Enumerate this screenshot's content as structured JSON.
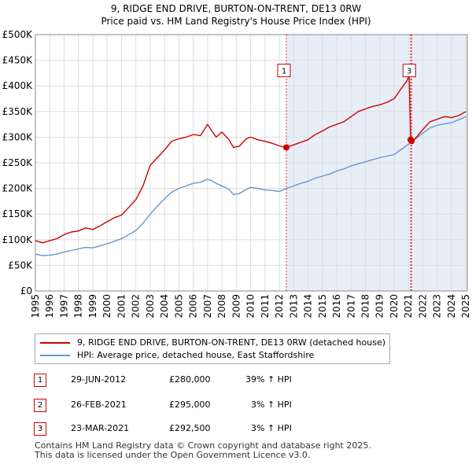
{
  "title": "9, RIDGE END DRIVE, BURTON-ON-TRENT, DE13 0RW",
  "subtitle": "Price paid vs. HM Land Registry's House Price Index (HPI)",
  "colors": {
    "property": "#cc0000",
    "hpi": "#6a96cc",
    "shade": "#e8eef8",
    "grid": "#dddddd",
    "marker": "#cc0000"
  },
  "chart_data": {
    "type": "line",
    "title": "Price paid vs. HM Land Registry's House Price Index (HPI)",
    "xlabel": "",
    "ylabel": "",
    "xlim": [
      1995,
      2025.1
    ],
    "ylim": [
      0,
      500000
    ],
    "yticks": [
      0,
      50000,
      100000,
      150000,
      200000,
      250000,
      300000,
      350000,
      400000,
      450000,
      500000
    ],
    "ytick_labels": [
      "£0",
      "£50K",
      "£100K",
      "£150K",
      "£200K",
      "£250K",
      "£300K",
      "£350K",
      "£400K",
      "£450K",
      "£500K"
    ],
    "xticks": [
      1995,
      1996,
      1997,
      1998,
      1999,
      2000,
      2001,
      2002,
      2003,
      2004,
      2005,
      2006,
      2007,
      2008,
      2009,
      2010,
      2011,
      2012,
      2013,
      2014,
      2015,
      2016,
      2017,
      2018,
      2019,
      2020,
      2021,
      2022,
      2023,
      2024,
      2025
    ],
    "grid": true,
    "shaded_region": {
      "x_start": 2012.5,
      "x_end": 2025.1
    },
    "series": [
      {
        "name": "9, RIDGE END DRIVE, BURTON-ON-TRENT, DE13 0RW (detached house)",
        "x": [
          1995,
          1995.5,
          1996,
          1996.5,
          1997,
          1997.5,
          1998,
          1998.5,
          1999,
          1999.5,
          2000,
          2000.5,
          2001,
          2001.5,
          2002,
          2002.5,
          2003,
          2003.5,
          2004,
          2004.5,
          2005,
          2005.5,
          2006,
          2006.5,
          2007,
          2007.3,
          2007.6,
          2008,
          2008.5,
          2008.8,
          2009.2,
          2009.7,
          2010,
          2010.5,
          2011,
          2011.5,
          2012,
          2012.5,
          2013,
          2013.5,
          2014,
          2014.5,
          2015,
          2015.5,
          2016,
          2016.5,
          2017,
          2017.5,
          2018,
          2018.5,
          2019,
          2019.5,
          2020,
          2020.5,
          2020.9,
          2021.05,
          2021.15,
          2021.22,
          2021.5,
          2022,
          2022.5,
          2023,
          2023.5,
          2024,
          2024.5,
          2025
        ],
        "values": [
          98000,
          94000,
          98000,
          102000,
          110000,
          115000,
          117000,
          123000,
          120000,
          127000,
          135000,
          143000,
          148000,
          163000,
          178000,
          205000,
          245000,
          260000,
          275000,
          292000,
          297000,
          300000,
          305000,
          303000,
          325000,
          312000,
          300000,
          310000,
          295000,
          280000,
          282000,
          297000,
          300000,
          295000,
          292000,
          288000,
          283000,
          280000,
          285000,
          290000,
          295000,
          305000,
          312000,
          320000,
          325000,
          330000,
          340000,
          350000,
          355000,
          360000,
          363000,
          368000,
          375000,
          395000,
          410000,
          420000,
          295000,
          292500,
          298000,
          315000,
          330000,
          335000,
          340000,
          338000,
          342000,
          350000
        ]
      },
      {
        "name": "HPI: Average price, detached house, East Staffordshire",
        "x": [
          1995,
          1995.5,
          1996,
          1996.5,
          1997,
          1997.5,
          1998,
          1998.5,
          1999,
          1999.5,
          2000,
          2000.5,
          2001,
          2001.5,
          2002,
          2002.5,
          2003,
          2003.5,
          2004,
          2004.5,
          2005,
          2005.5,
          2006,
          2006.5,
          2007,
          2007.3,
          2007.6,
          2008,
          2008.5,
          2008.8,
          2009.2,
          2009.7,
          2010,
          2010.5,
          2011,
          2011.5,
          2012,
          2012.5,
          2013,
          2013.5,
          2014,
          2014.5,
          2015,
          2015.5,
          2016,
          2016.5,
          2017,
          2017.5,
          2018,
          2018.5,
          2019,
          2019.5,
          2020,
          2020.5,
          2021,
          2021.5,
          2022,
          2022.5,
          2023,
          2023.5,
          2024,
          2024.5,
          2025
        ],
        "values": [
          72000,
          69000,
          70000,
          72000,
          76000,
          79000,
          82000,
          85000,
          84000,
          88000,
          92000,
          97000,
          102000,
          110000,
          118000,
          132000,
          150000,
          165000,
          180000,
          193000,
          200000,
          205000,
          210000,
          212000,
          218000,
          215000,
          210000,
          205000,
          198000,
          188000,
          190000,
          198000,
          202000,
          200000,
          197000,
          196000,
          194000,
          200000,
          205000,
          210000,
          214000,
          220000,
          224000,
          228000,
          234000,
          238000,
          244000,
          248000,
          252000,
          256000,
          260000,
          263000,
          266000,
          276000,
          286000,
          297000,
          308000,
          318000,
          323000,
          326000,
          328000,
          334000,
          340000
        ]
      }
    ],
    "transactions": [
      {
        "id": "1",
        "x": 2012.49,
        "date": "29-JUN-2012",
        "price": 280000,
        "price_label": "£280,000",
        "hpi": "39% ↑ HPI"
      },
      {
        "id": "2",
        "x": 2021.15,
        "date": "26-FEB-2021",
        "price": 295000,
        "price_label": "£295,000",
        "hpi": "3% ↑ HPI"
      },
      {
        "id": "3",
        "x": 2021.22,
        "date": "23-MAR-2021",
        "price": 292500,
        "price_label": "£292,500",
        "hpi": "3% ↑ HPI"
      }
    ],
    "chart_labels": [
      "1",
      "3"
    ]
  },
  "legend": {
    "property": "9, RIDGE END DRIVE, BURTON-ON-TRENT, DE13 0RW (detached house)",
    "hpi": "HPI: Average price, detached house, East Staffordshire"
  },
  "table": [
    {
      "num": "1",
      "date": "29-JUN-2012",
      "price": "£280,000",
      "hpi": "39% ↑ HPI"
    },
    {
      "num": "2",
      "date": "26-FEB-2021",
      "price": "£295,000",
      "hpi": "3% ↑ HPI"
    },
    {
      "num": "3",
      "date": "23-MAR-2021",
      "price": "£292,500",
      "hpi": "3% ↑ HPI"
    }
  ],
  "footer": {
    "line1": "Contains HM Land Registry data © Crown copyright and database right 2025.",
    "line2": "This data is licensed under the Open Government Licence v3.0."
  }
}
